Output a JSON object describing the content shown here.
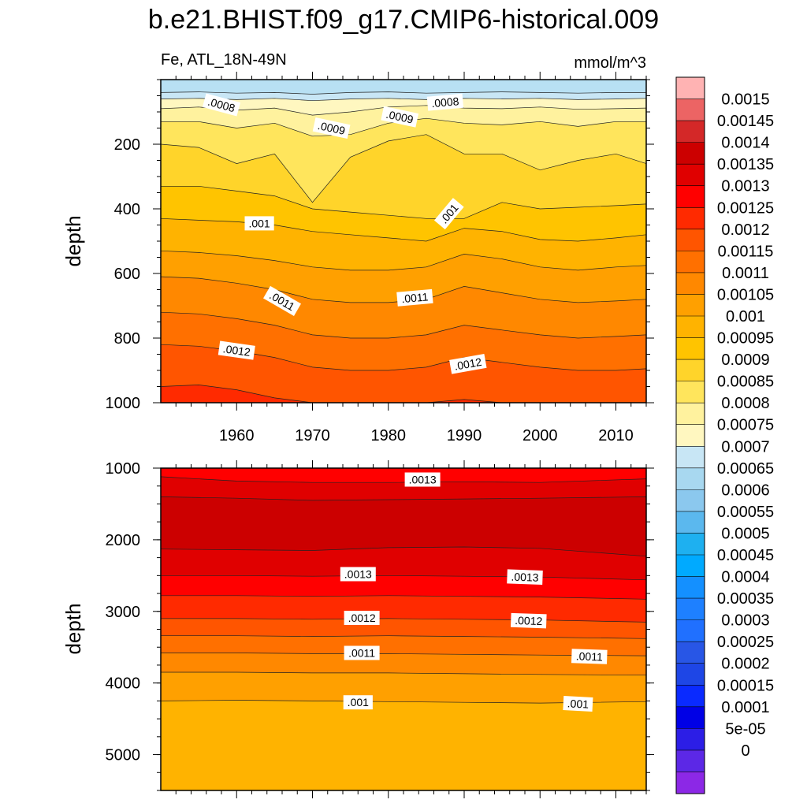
{
  "figure": {
    "title": "b.e21.BHIST.f09_g17.CMIP6-historical.009",
    "left_string": "Fe, ATL_18N-49N",
    "right_string": "mmol/m^3"
  },
  "chart_data": [
    {
      "type": "heatmap",
      "panel": "upper",
      "variable": "Fe",
      "region": "ATL_18N-49N",
      "units": "mmol/m^3",
      "xlabel": "",
      "ylabel": "depth",
      "xlim": [
        1950,
        2014
      ],
      "ylim": [
        1000,
        0
      ],
      "x_ticks": [
        1960,
        1970,
        1980,
        1990,
        2000,
        2010
      ],
      "y_ticks": [
        200,
        400,
        600,
        800,
        1000
      ],
      "contour_interval": 5e-05,
      "contour_lines": [
        {
          "level": 0.0007,
          "x": [
            1950,
            1955,
            1960,
            1965,
            1970,
            1975,
            1980,
            1985,
            1990,
            1995,
            2000,
            2005,
            2010,
            2014
          ],
          "depth": [
            40,
            38,
            42,
            40,
            45,
            40,
            38,
            42,
            40,
            38,
            40,
            42,
            40,
            40
          ]
        },
        {
          "level": 0.00075,
          "x": [
            1950,
            1955,
            1960,
            1965,
            1970,
            1975,
            1980,
            1985,
            1990,
            1995,
            2000,
            2005,
            2010,
            2014
          ],
          "depth": [
            60,
            58,
            62,
            58,
            65,
            60,
            58,
            62,
            58,
            60,
            58,
            62,
            60,
            58
          ]
        },
        {
          "level": 0.0008,
          "x": [
            1950,
            1955,
            1960,
            1965,
            1970,
            1975,
            1980,
            1985,
            1990,
            1995,
            2000,
            2005,
            2010,
            2014
          ],
          "depth": [
            90,
            85,
            95,
            88,
            110,
            100,
            85,
            80,
            88,
            90,
            85,
            92,
            90,
            88
          ]
        },
        {
          "level": 0.00085,
          "x": [
            1950,
            1955,
            1960,
            1965,
            1970,
            1975,
            1980,
            1985,
            1990,
            1995,
            2000,
            2005,
            2010,
            2014
          ],
          "depth": [
            130,
            130,
            150,
            135,
            175,
            170,
            135,
            120,
            135,
            140,
            130,
            145,
            130,
            130
          ]
        },
        {
          "level": 0.0009,
          "x": [
            1950,
            1955,
            1960,
            1965,
            1970,
            1975,
            1980,
            1985,
            1990,
            1995,
            2000,
            2005,
            2010,
            2014
          ],
          "depth": [
            200,
            210,
            260,
            230,
            380,
            240,
            190,
            170,
            230,
            230,
            280,
            250,
            230,
            260
          ]
        },
        {
          "level": 0.00095,
          "x": [
            1950,
            1955,
            1960,
            1965,
            1970,
            1975,
            1980,
            1985,
            1990,
            1995,
            2000,
            2005,
            2010,
            2014
          ],
          "depth": [
            330,
            330,
            345,
            360,
            400,
            410,
            420,
            430,
            430,
            380,
            400,
            395,
            390,
            385
          ]
        },
        {
          "level": 0.001,
          "x": [
            1950,
            1955,
            1960,
            1965,
            1970,
            1975,
            1980,
            1985,
            1990,
            1995,
            2000,
            2005,
            2010,
            2014
          ],
          "depth": [
            430,
            435,
            440,
            450,
            470,
            480,
            490,
            500,
            460,
            470,
            495,
            500,
            490,
            480
          ]
        },
        {
          "level": 0.00105,
          "x": [
            1950,
            1955,
            1960,
            1965,
            1970,
            1975,
            1980,
            1985,
            1990,
            1995,
            2000,
            2005,
            2010,
            2014
          ],
          "depth": [
            530,
            535,
            545,
            560,
            580,
            590,
            590,
            580,
            540,
            555,
            580,
            590,
            580,
            575
          ]
        },
        {
          "level": 0.0011,
          "x": [
            1950,
            1955,
            1960,
            1965,
            1970,
            1975,
            1980,
            1985,
            1990,
            1995,
            2000,
            2005,
            2010,
            2014
          ],
          "depth": [
            610,
            615,
            630,
            650,
            680,
            690,
            690,
            680,
            640,
            660,
            680,
            690,
            685,
            680
          ]
        },
        {
          "level": 0.00115,
          "x": [
            1950,
            1955,
            1960,
            1965,
            1970,
            1975,
            1980,
            1985,
            1990,
            1995,
            2000,
            2005,
            2010,
            2014
          ],
          "depth": [
            720,
            725,
            740,
            760,
            790,
            800,
            800,
            790,
            760,
            775,
            790,
            800,
            795,
            790
          ]
        },
        {
          "level": 0.0012,
          "x": [
            1950,
            1955,
            1960,
            1965,
            1970,
            1975,
            1980,
            1985,
            1990,
            1995,
            2000,
            2005,
            2010,
            2014
          ],
          "depth": [
            820,
            825,
            840,
            860,
            890,
            900,
            900,
            890,
            860,
            875,
            890,
            900,
            900,
            895
          ]
        },
        {
          "level": 0.00125,
          "x": [
            1950,
            1955,
            1960,
            1965,
            1970,
            1975,
            1980,
            1985,
            1990,
            1995,
            2000,
            2005,
            2010,
            2014
          ],
          "depth": [
            950,
            945,
            960,
            985,
            1000,
            1000,
            1000,
            1000,
            990,
            1000,
            1000,
            1000,
            1000,
            1000
          ]
        }
      ],
      "contour_labels": [
        {
          "text": ".0008",
          "x": 1958,
          "depth": 78,
          "angle": 15
        },
        {
          "text": ".0009",
          "x": 1972.5,
          "depth": 150,
          "angle": 12
        },
        {
          "text": ".0009",
          "x": 1981.5,
          "depth": 115,
          "angle": 12
        },
        {
          "text": ".0008",
          "x": 1987.5,
          "depth": 70,
          "angle": -5
        },
        {
          "text": ".001",
          "x": 1963,
          "depth": 445,
          "angle": 0
        },
        {
          "text": ".001",
          "x": 1988,
          "depth": 415,
          "angle": -50
        },
        {
          "text": ".0011",
          "x": 1966,
          "depth": 685,
          "angle": 30
        },
        {
          "text": ".0011",
          "x": 1983.5,
          "depth": 675,
          "angle": -5
        },
        {
          "text": ".0012",
          "x": 1960,
          "depth": 838,
          "angle": 8
        },
        {
          "text": ".0012",
          "x": 1990.5,
          "depth": 880,
          "angle": -10
        }
      ]
    },
    {
      "type": "heatmap",
      "panel": "lower",
      "variable": "Fe",
      "region": "ATL_18N-49N",
      "units": "mmol/m^3",
      "xlabel": "",
      "ylabel": "depth",
      "xlim": [
        1950,
        2014
      ],
      "ylim": [
        5500,
        1000
      ],
      "y_ticks": [
        1000,
        2000,
        3000,
        4000,
        5000
      ],
      "contour_interval": 5e-05,
      "contour_lines": [
        {
          "level": 0.00135,
          "x": [
            1950,
            1960,
            1970,
            1980,
            1990,
            2000,
            2014
          ],
          "depth": [
            1120,
            1180,
            1200,
            1200,
            1190,
            1200,
            1150
          ]
        },
        {
          "level": 0.0014,
          "x": [
            1950,
            1960,
            1970,
            1980,
            1990,
            2000,
            2014
          ],
          "depth": [
            1400,
            1420,
            1450,
            1440,
            1430,
            1420,
            1400
          ]
        },
        {
          "level": 0.00135,
          "x": [
            1950,
            1960,
            1970,
            1980,
            1990,
            2000,
            2014
          ],
          "depth": [
            2130,
            2140,
            2150,
            2110,
            2100,
            2120,
            2230
          ]
        },
        {
          "level": 0.0013,
          "x": [
            1950,
            1960,
            1970,
            1980,
            1990,
            2000,
            2014
          ],
          "depth": [
            2500,
            2500,
            2510,
            2500,
            2510,
            2520,
            2560
          ]
        },
        {
          "level": 0.00125,
          "x": [
            1950,
            1960,
            1970,
            1980,
            1990,
            2000,
            2014
          ],
          "depth": [
            2780,
            2780,
            2790,
            2780,
            2790,
            2800,
            2830
          ]
        },
        {
          "level": 0.0012,
          "x": [
            1950,
            1960,
            1970,
            1980,
            1990,
            2000,
            2014
          ],
          "depth": [
            3100,
            3100,
            3110,
            3100,
            3110,
            3120,
            3150
          ]
        },
        {
          "level": 0.00115,
          "x": [
            1950,
            1960,
            1970,
            1980,
            1990,
            2000,
            2014
          ],
          "depth": [
            3340,
            3340,
            3350,
            3340,
            3350,
            3360,
            3380
          ]
        },
        {
          "level": 0.0011,
          "x": [
            1950,
            1960,
            1970,
            1980,
            1990,
            2000,
            2014
          ],
          "depth": [
            3580,
            3580,
            3590,
            3590,
            3600,
            3610,
            3620
          ]
        },
        {
          "level": 0.00105,
          "x": [
            1950,
            1960,
            1970,
            1980,
            1990,
            2000,
            2014
          ],
          "depth": [
            3850,
            3850,
            3860,
            3860,
            3870,
            3880,
            3890
          ]
        },
        {
          "level": 0.001,
          "x": [
            1950,
            1960,
            1970,
            1980,
            1990,
            2000,
            2014
          ],
          "depth": [
            4250,
            4240,
            4250,
            4260,
            4270,
            4280,
            4260
          ]
        }
      ],
      "contour_labels": [
        {
          "text": ".0013",
          "x": 1984.5,
          "depth": 1160,
          "angle": 0
        },
        {
          "text": ".0013",
          "x": 1976,
          "depth": 2480,
          "angle": 0
        },
        {
          "text": ".0013",
          "x": 1998,
          "depth": 2520,
          "angle": 2
        },
        {
          "text": ".0012",
          "x": 1976.5,
          "depth": 3090,
          "angle": 0
        },
        {
          "text": ".0012",
          "x": 1998.5,
          "depth": 3130,
          "angle": 2
        },
        {
          "text": ".0011",
          "x": 1976.5,
          "depth": 3580,
          "angle": 0
        },
        {
          "text": ".0011",
          "x": 2006.5,
          "depth": 3630,
          "angle": 2
        },
        {
          "text": ".001",
          "x": 1976,
          "depth": 4270,
          "angle": 0
        },
        {
          "text": ".001",
          "x": 2005,
          "depth": 4290,
          "angle": 3
        }
      ]
    }
  ],
  "colorbar": {
    "labels": [
      "0.0015",
      "0.00145",
      "0.0014",
      "0.00135",
      "0.0013",
      "0.00125",
      "0.0012",
      "0.00115",
      "0.0011",
      "0.00105",
      "0.001",
      "0.00095",
      "0.0009",
      "0.00085",
      "0.0008",
      "0.00075",
      "0.0007",
      "0.00065",
      "0.0006",
      "0.00055",
      "0.0005",
      "0.00045",
      "0.0004",
      "0.00035",
      "0.0003",
      "0.00025",
      "0.0002",
      "0.00015",
      "0.0001",
      "5e-05",
      "0"
    ],
    "colors": [
      "#ffb3b3",
      "#ec6464",
      "#d42828",
      "#cc0000",
      "#e00000",
      "#ff0000",
      "#ff2a00",
      "#ff5500",
      "#ff7000",
      "#ff8800",
      "#ffa000",
      "#ffb300",
      "#ffc400",
      "#ffd42a",
      "#ffe55c",
      "#fff29e",
      "#fff7c0",
      "#c8e6f5",
      "#a8d8f0",
      "#8bc8ee",
      "#5bb8ee",
      "#1eb0f0",
      "#00aaff",
      "#1490ff",
      "#1e80ff",
      "#2070ff",
      "#2856e6",
      "#1e46e6",
      "#0a2aff",
      "#0000e6",
      "#2c1ee6",
      "#5c28e6",
      "#8c28e6"
    ]
  }
}
